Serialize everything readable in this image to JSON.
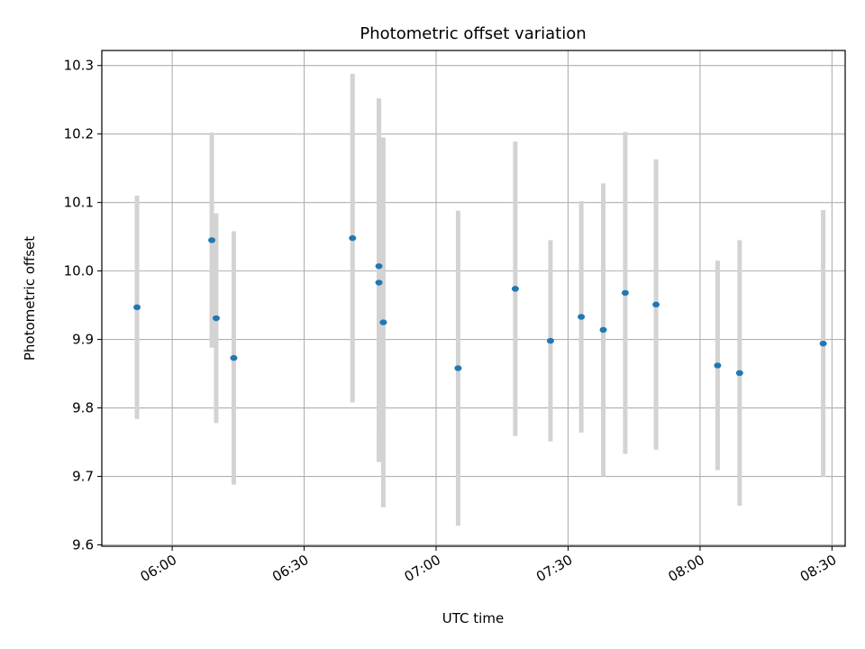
{
  "chart_data": {
    "type": "scatter",
    "title": "Photometric offset variation",
    "xlabel": "UTC time",
    "ylabel": "Photometric offset",
    "x_axis": {
      "unit": "UTC time (HH:MM)",
      "range": [
        "05:44",
        "08:33"
      ],
      "tick_labels": [
        "06:00",
        "06:30",
        "07:00",
        "07:30",
        "08:00",
        "08:30"
      ],
      "tick_label_rotation": "30deg"
    },
    "y_axis": {
      "range": [
        9.598,
        10.322
      ],
      "tick_labels": [
        "9.6",
        "9.7",
        "9.8",
        "9.9",
        "10.0",
        "10.1",
        "10.2",
        "10.3"
      ]
    },
    "grid": true,
    "marker_color": "#1f77b4",
    "errorbar_color": "#d3d3d3",
    "points": [
      {
        "time": "05:52",
        "y": 9.947,
        "err": 0.163
      },
      {
        "time": "06:09",
        "y": 10.045,
        "err": 0.157
      },
      {
        "time": "06:10",
        "y": 9.931,
        "err": 0.153
      },
      {
        "time": "06:14",
        "y": 9.873,
        "err": 0.185
      },
      {
        "time": "06:41",
        "y": 10.048,
        "err": 0.24
      },
      {
        "time": "06:47",
        "y": 10.007,
        "err": 0.245
      },
      {
        "time": "06:47",
        "y": 9.983,
        "err": 0.262
      },
      {
        "time": "06:48",
        "y": 9.925,
        "err": 0.27
      },
      {
        "time": "07:05",
        "y": 9.858,
        "err": 0.23
      },
      {
        "time": "07:18",
        "y": 9.974,
        "err": 0.215
      },
      {
        "time": "07:26",
        "y": 9.898,
        "err": 0.147
      },
      {
        "time": "07:33",
        "y": 9.933,
        "err": 0.169
      },
      {
        "time": "07:38",
        "y": 9.914,
        "err": 0.214
      },
      {
        "time": "07:43",
        "y": 9.968,
        "err": 0.235
      },
      {
        "time": "07:50",
        "y": 9.951,
        "err": 0.212
      },
      {
        "time": "08:04",
        "y": 9.862,
        "err": 0.153
      },
      {
        "time": "08:09",
        "y": 9.851,
        "err": 0.194
      },
      {
        "time": "08:28",
        "y": 9.894,
        "err": 0.195
      }
    ]
  }
}
